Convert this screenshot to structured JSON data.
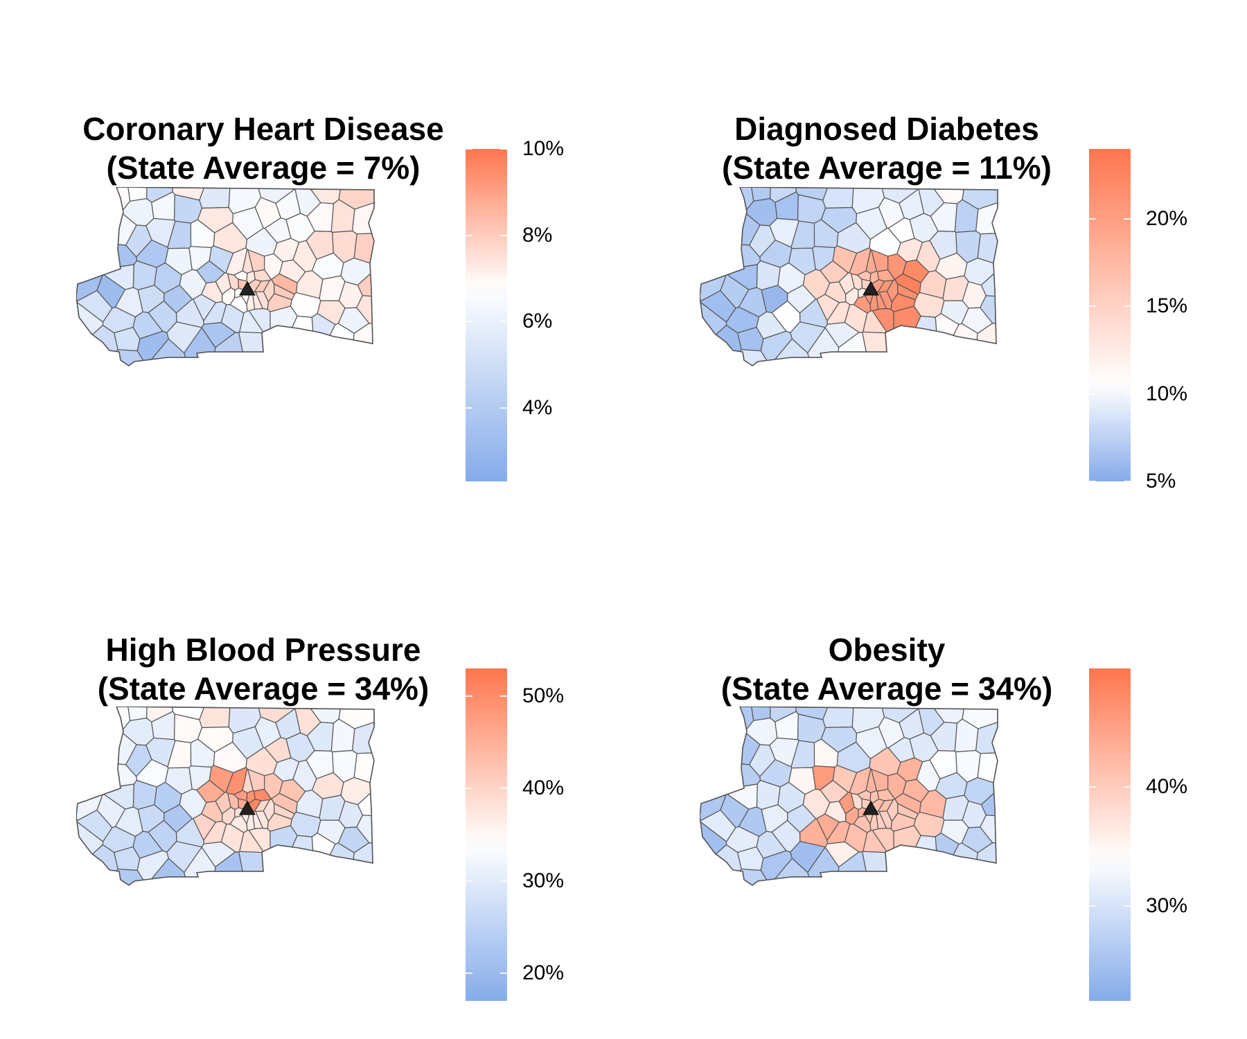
{
  "colors": {
    "low": "#6f9ce6",
    "mid": "#ffffff",
    "high": "#ff6f45",
    "border": "#555555",
    "marker": "#222222"
  },
  "panels": [
    {
      "title_line1": "Coronary Heart Disease",
      "title_line2": "(State Average = 7%)",
      "scale": {
        "min": 2.3,
        "max": 10.0,
        "mid": 6.8
      },
      "ticks": [
        {
          "value": 4,
          "label": "4%"
        },
        {
          "value": 6,
          "label": "6%"
        },
        {
          "value": 8,
          "label": "8%"
        },
        {
          "value": 10,
          "label": "10%"
        }
      ]
    },
    {
      "title_line1": "Diagnosed Diabetes",
      "title_line2": "(State Average = 11%)",
      "scale": {
        "min": 5.0,
        "max": 24.0,
        "mid": 10.5
      },
      "ticks": [
        {
          "value": 5,
          "label": "5%"
        },
        {
          "value": 10,
          "label": "10%"
        },
        {
          "value": 15,
          "label": "15%"
        },
        {
          "value": 20,
          "label": "20%"
        }
      ]
    },
    {
      "title_line1": "High Blood Pressure",
      "title_line2": "(State Average = 34%)",
      "scale": {
        "min": 17.0,
        "max": 53.0,
        "mid": 34.0
      },
      "ticks": [
        {
          "value": 20,
          "label": "20%"
        },
        {
          "value": 30,
          "label": "30%"
        },
        {
          "value": 40,
          "label": "40%"
        },
        {
          "value": 50,
          "label": "50%"
        }
      ]
    },
    {
      "title_line1": "Obesity",
      "title_line2": "(State Average = 34%)",
      "scale": {
        "min": 22.0,
        "max": 50.0,
        "mid": 34.0
      },
      "ticks": [
        {
          "value": 30,
          "label": "30%"
        },
        {
          "value": 40,
          "label": "40%"
        }
      ]
    }
  ]
}
